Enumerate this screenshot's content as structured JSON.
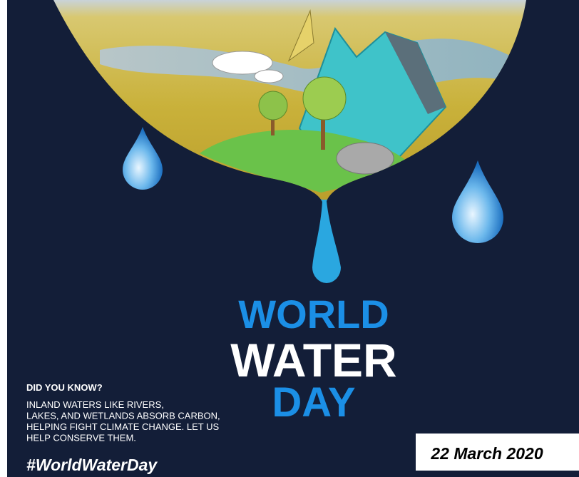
{
  "poster": {
    "title": [
      "WORLD",
      "WATER",
      "DAY"
    ],
    "fact": {
      "heading": "DID YOU KNOW?",
      "lines": [
        "INLAND WATERS LIKE RIVERS,",
        "LAKES, AND WETLANDS ABSORB CARBON,",
        "HELPING FIGHT CLIMATE CHANGE. LET US",
        "HELP CONSERVE THEM."
      ]
    },
    "hashtag": "#WorldWaterDay",
    "date": "22 March 2020"
  }
}
